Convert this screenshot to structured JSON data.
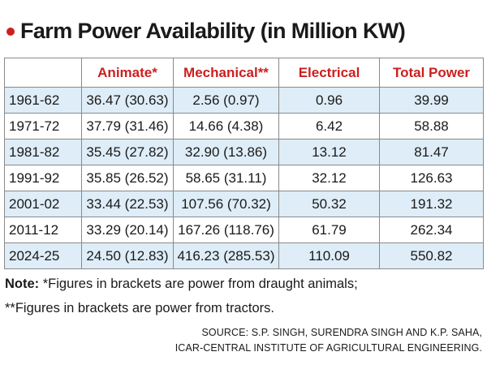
{
  "title": "Farm Power Availability (in Million KW)",
  "colors": {
    "accent_red": "#cc1f1f",
    "row_shade": "#deedf7",
    "text": "#1a1a1a",
    "border": "#8a8a8a"
  },
  "table": {
    "headers": [
      "",
      "Animate*",
      "Mechanical**",
      "Electrical",
      "Total Power"
    ],
    "rows": [
      [
        "1961-62",
        "36.47 (30.63)",
        "2.56 (0.97)",
        "0.96",
        "39.99"
      ],
      [
        "1971-72",
        "37.79 (31.46)",
        "14.66 (4.38)",
        "6.42",
        "58.88"
      ],
      [
        "1981-82",
        "35.45 (27.82)",
        "32.90 (13.86)",
        "13.12",
        "81.47"
      ],
      [
        "1991-92",
        "35.85 (26.52)",
        "58.65 (31.11)",
        "32.12",
        "126.63"
      ],
      [
        "2001-02",
        "33.44 (22.53)",
        "107.56 (70.32)",
        "50.32",
        "191.32"
      ],
      [
        "2011-12",
        "33.29 (20.14)",
        "167.26 (118.76)",
        "61.79",
        "262.34"
      ],
      [
        "2024-25",
        "24.50 (12.83)",
        "416.23 (285.53)",
        "110.09",
        "550.82"
      ]
    ]
  },
  "note": {
    "label": "Note:",
    "line1": " *Figures in brackets are power from draught animals;",
    "line2": "**Figures in brackets are power from tractors."
  },
  "source": {
    "line1": "SOURCE: S.P. SINGH, SURENDRA SINGH AND K.P. SAHA,",
    "line2": "ICAR-CENTRAL INSTITUTE OF AGRICULTURAL ENGINEERING."
  }
}
